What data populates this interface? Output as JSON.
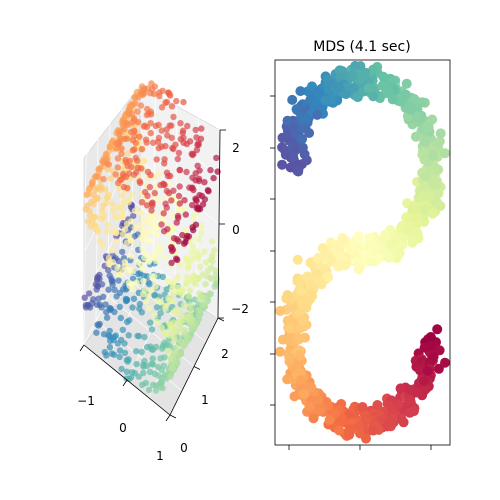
{
  "chart_data": [
    {
      "type": "scatter",
      "projection": "3d",
      "title": "",
      "x_ticks": [
        "−1",
        "0",
        "1"
      ],
      "y_ticks": [
        "0",
        "1",
        "2"
      ],
      "z_ticks": [
        "−2",
        "0",
        "2"
      ],
      "xlim": [
        -1,
        1
      ],
      "ylim": [
        0,
        2
      ],
      "zlim": [
        -2,
        2
      ],
      "colormap": "Spectral",
      "points_approx": 1000,
      "description": ""
    },
    {
      "type": "scatter",
      "title": "MDS (4.1 sec)",
      "x_ticks": [
        "",
        "",
        ""
      ],
      "y_ticks": [
        "",
        "",
        "",
        "",
        "",
        ""
      ],
      "colormap": "Spectral",
      "points_approx": 1000,
      "grid": false
    }
  ]
}
